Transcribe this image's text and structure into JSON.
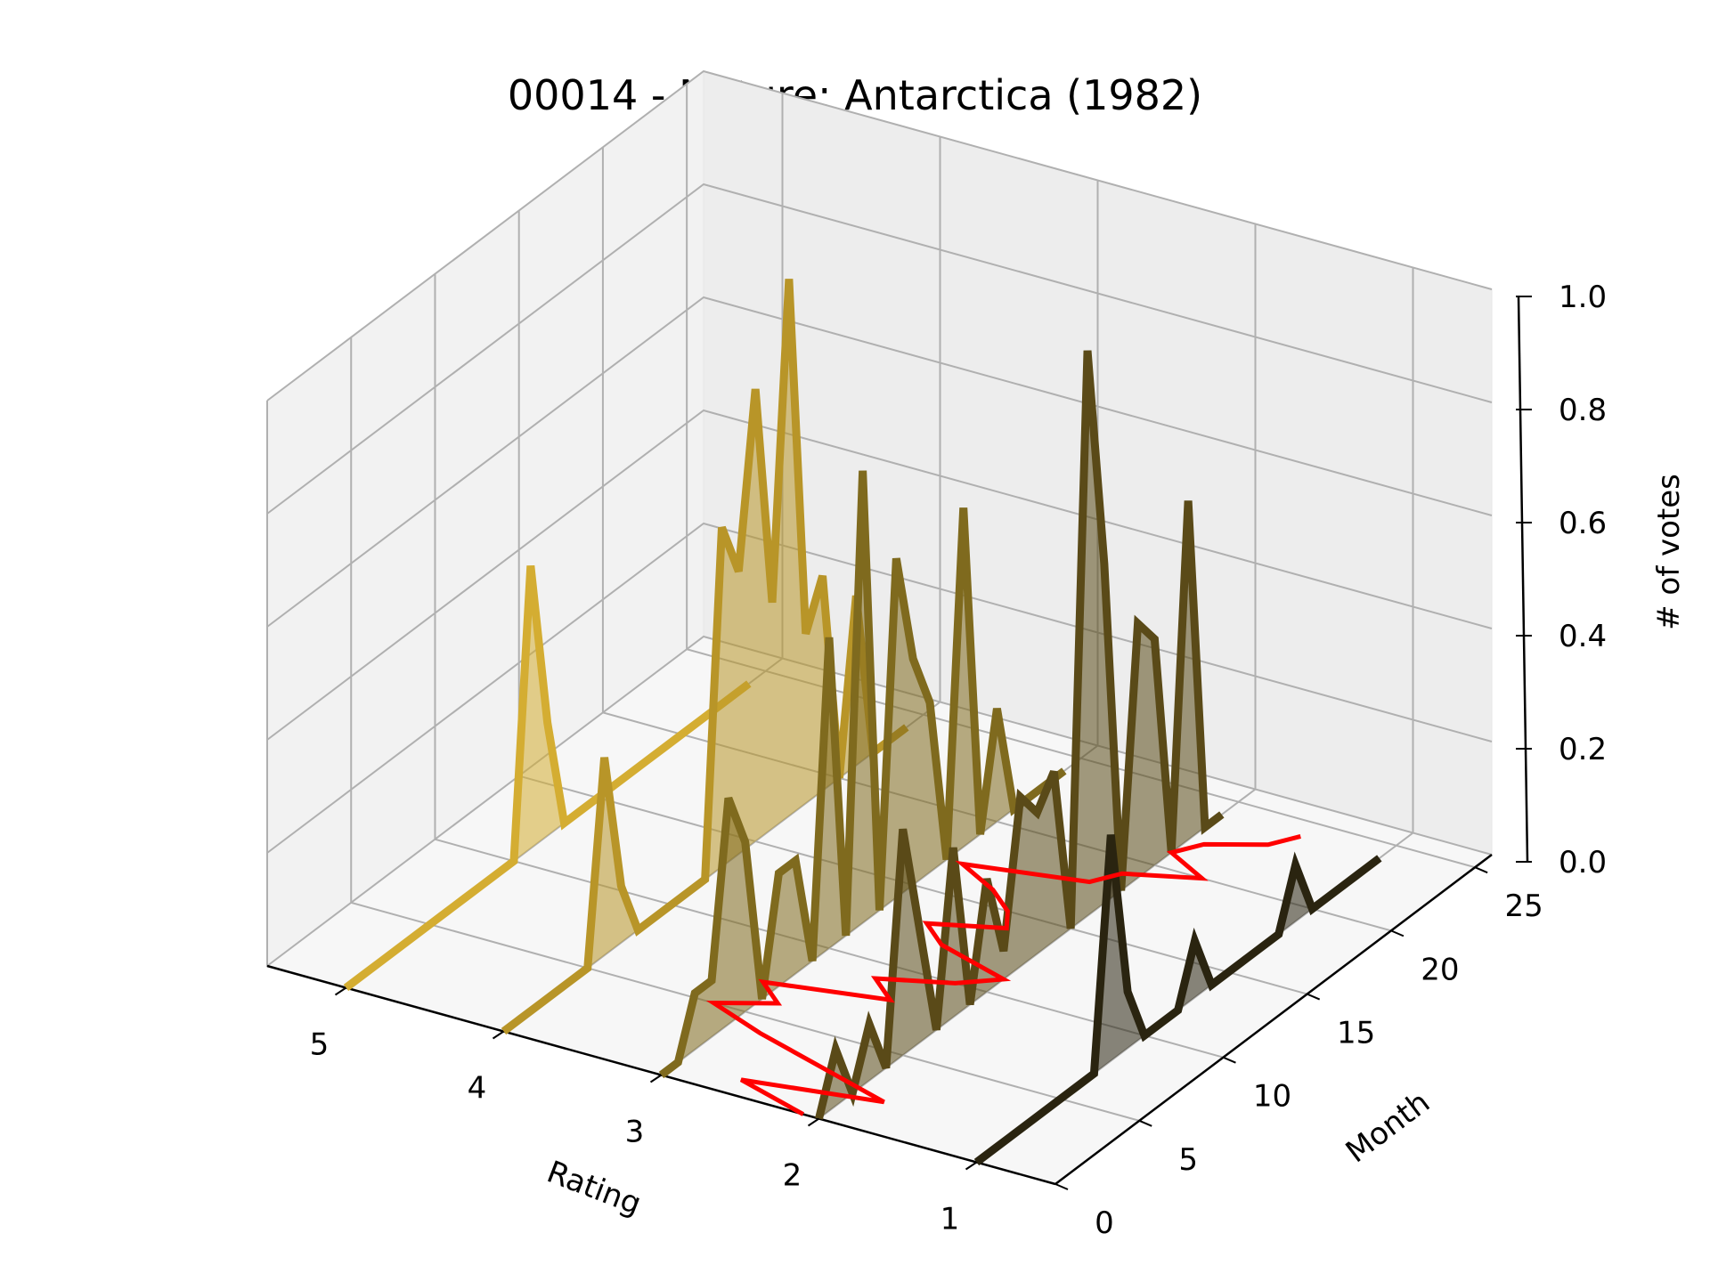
{
  "chart_data": {
    "type": "3d-line-area",
    "title": "00014 - Nature: Antarctica (1982)",
    "xlabel": "Rating",
    "ylabel": "Month",
    "zlabel": "# of votes",
    "x_ticks": [
      "5",
      "4",
      "3",
      "2",
      "1"
    ],
    "y_ticks": [
      "0",
      "5",
      "10",
      "15",
      "20",
      "25"
    ],
    "z_ticks": [
      "0.0",
      "0.2",
      "0.4",
      "0.6",
      "0.8",
      "1.0"
    ],
    "xlim": [
      0.5,
      5.5
    ],
    "ylim": [
      0,
      26
    ],
    "zlim": [
      0,
      1.0
    ],
    "months": [
      0,
      1,
      2,
      3,
      4,
      5,
      6,
      7,
      8,
      9,
      10,
      11,
      12,
      13,
      14,
      15,
      16,
      17,
      18,
      19,
      20,
      21,
      22,
      23,
      24
    ],
    "series": [
      {
        "rating": 5,
        "color": "#d4ad32",
        "values": [
          0.0,
          0.0,
          0.0,
          0.0,
          0.0,
          0.0,
          0.0,
          0.0,
          0.0,
          0.0,
          0.0,
          0.5,
          0.2,
          0.0,
          0.0,
          0.0,
          0.0,
          0.0,
          0.0,
          0.0,
          0.0,
          0.0,
          0.0,
          0.0,
          0.0
        ]
      },
      {
        "rating": 4,
        "color": "#b89528",
        "values": [
          0.0,
          0.0,
          0.0,
          0.0,
          0.0,
          0.0,
          0.35,
          0.1,
          0.0,
          0.0,
          0.0,
          0.0,
          0.0,
          0.6,
          0.5,
          0.8,
          0.4,
          0.95,
          0.3,
          0.38,
          0.0,
          0.3,
          0.0,
          0.0,
          0.0
        ]
      },
      {
        "rating": 3,
        "color": "#7f6a1e",
        "values": [
          0.0,
          0.0,
          0.1,
          0.1,
          0.4,
          0.3,
          0.0,
          0.2,
          0.2,
          0.0,
          0.55,
          0.0,
          0.8,
          0.0,
          0.6,
          0.4,
          0.3,
          0.0,
          0.6,
          0.0,
          0.2,
          0.0,
          0.0,
          0.0,
          0.0
        ]
      },
      {
        "rating": 2,
        "color": "#5a4a18",
        "values": [
          0.0,
          0.1,
          0.0,
          0.1,
          0.0,
          0.4,
          0.2,
          0.0,
          0.3,
          0.0,
          0.2,
          0.05,
          0.3,
          0.25,
          0.3,
          0.0,
          1.0,
          0.6,
          0.0,
          0.45,
          0.4,
          0.0,
          0.6,
          0.0,
          0.0
        ]
      },
      {
        "rating": 1,
        "color": "#2a2410",
        "values": [
          0.0,
          0.0,
          0.0,
          0.0,
          0.0,
          0.0,
          0.0,
          0.0,
          0.4,
          0.1,
          0.0,
          0.0,
          0.0,
          0.1,
          0.0,
          0.0,
          0.0,
          0.0,
          0.0,
          0.1,
          0.0,
          0.0,
          0.0,
          0.0,
          0.0
        ]
      }
    ],
    "mean_rating_line": {
      "color": "#ff0000",
      "values": [
        2.1,
        2.6,
        1.8,
        2.3,
        2.8,
        3.2,
        2.9,
        3.1,
        2.4,
        2.6,
        2.2,
        2.0,
        2.5,
        2.7,
        2.3,
        2.4,
        2.6,
        2.9,
        2.2,
        2.1,
        1.7,
        2.0,
        1.9,
        1.6,
        1.5
      ]
    }
  }
}
